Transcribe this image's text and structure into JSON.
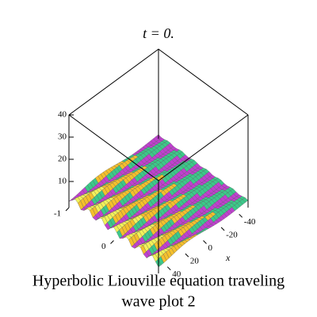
{
  "title": "t = 0.",
  "caption": [
    "Hyperbolic Liouville equation  traveling",
    "wave plot 2"
  ],
  "chart_data": {
    "type": "surface",
    "x_label": "x",
    "zticks": [
      10,
      20,
      30,
      40
    ],
    "yticks": [
      -1,
      0
    ],
    "xticks": [
      -40,
      -20,
      0,
      20,
      40
    ],
    "zlim": [
      0,
      40
    ],
    "ylim": [
      -1,
      1
    ],
    "xlim": [
      -50,
      50
    ]
  }
}
